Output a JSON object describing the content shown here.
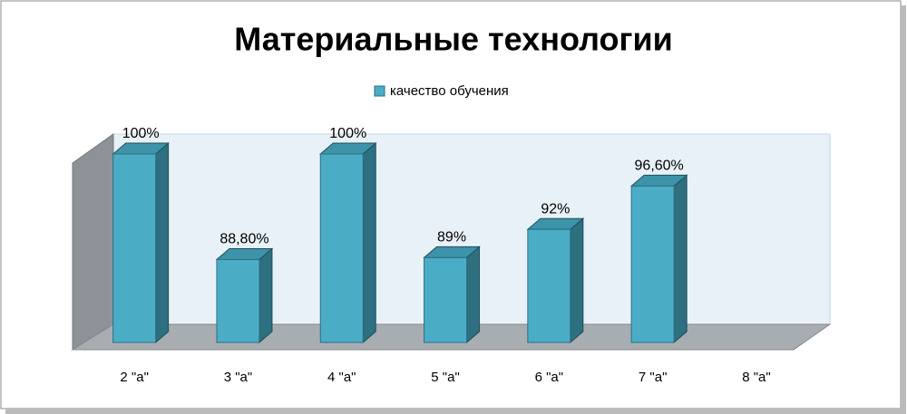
{
  "chart_data": {
    "type": "bar",
    "title": "Материальные технологии",
    "categories": [
      "2 \"а\"",
      "3 \"а\"",
      "4 \"а\"",
      "5 \"а\"",
      "6 \"а\"",
      "7 \"а\"",
      "8 \"а\""
    ],
    "series": [
      {
        "name": "качество обучения",
        "color": "#4bacc6",
        "values": [
          100,
          88.8,
          100,
          89,
          92,
          96.6,
          null
        ],
        "value_labels": [
          "100%",
          "88,80%",
          "100%",
          "89%",
          "92%",
          "96,60%",
          null
        ]
      }
    ],
    "ylim": [
      80,
      100
    ],
    "legend": "top"
  }
}
